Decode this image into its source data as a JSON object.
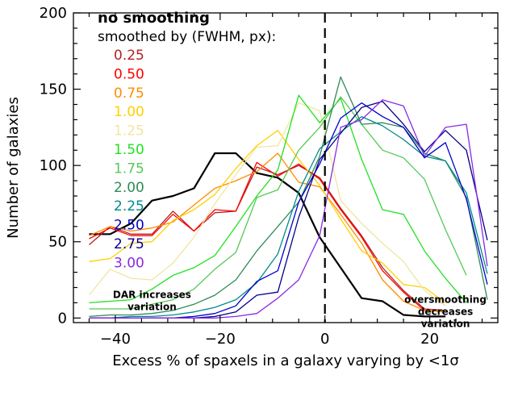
{
  "chart_data": {
    "type": "line",
    "title": "",
    "xlabel": "Excess % of spaxels in a galaxy varying by <1σ",
    "ylabel": "Number of galaxies",
    "xlim": [
      -48,
      33
    ],
    "ylim": [
      -3,
      200
    ],
    "xticks": [
      -40,
      -20,
      0,
      20
    ],
    "yticks": [
      0,
      50,
      100,
      150,
      200
    ],
    "grid": false,
    "legend_position": "top-left",
    "legend": {
      "header": "no smoothing",
      "subheader": "smoothed by (FWHM, px):"
    },
    "reference_line": {
      "x": 0,
      "style": "dashed"
    },
    "annotations": [
      {
        "lines": [
          "DAR increases",
          "variation"
        ],
        "anchor_x": -33,
        "anchor_y": 13
      },
      {
        "lines": [
          "oversmoothing",
          "decreases",
          "variation"
        ],
        "anchor_x": 23,
        "anchor_y": 10
      }
    ],
    "series": [
      {
        "name": "no smoothing",
        "color": "#000000",
        "width": 2.2,
        "legend": "header",
        "x": [
          -45,
          -41,
          -37,
          -33,
          -29,
          -25,
          -21,
          -17,
          -13,
          -9,
          -5,
          -1,
          3,
          7,
          11,
          15,
          19,
          23
        ],
        "y": [
          55,
          55,
          62,
          77,
          80,
          85,
          108,
          108,
          95,
          92,
          82,
          53,
          33,
          13,
          11,
          2,
          1,
          1
        ]
      },
      {
        "name": "0.25",
        "color": "#b22222",
        "width": 1.3,
        "x": [
          -45,
          -41,
          -37,
          -33,
          -29,
          -25,
          -21,
          -17,
          -13,
          -9,
          -5,
          -1,
          3,
          7,
          11,
          15,
          19,
          23
        ],
        "y": [
          48,
          60,
          55,
          55,
          70,
          57,
          69,
          70,
          99,
          94,
          100,
          92,
          72,
          54,
          33,
          18,
          6,
          5
        ]
      },
      {
        "name": "0.50",
        "color": "#ff0000",
        "width": 1.3,
        "x": [
          -45,
          -41,
          -37,
          -33,
          -29,
          -25,
          -21,
          -17,
          -13,
          -9,
          -5,
          -1,
          3,
          7,
          11,
          15,
          19,
          23
        ],
        "y": [
          52,
          59,
          54,
          54,
          68,
          57,
          71,
          70,
          102,
          93,
          101,
          91,
          71,
          53,
          31,
          17,
          5,
          4
        ]
      },
      {
        "name": "0.75",
        "color": "#ff8c00",
        "width": 1.3,
        "x": [
          -45,
          -41,
          -37,
          -33,
          -29,
          -25,
          -21,
          -17,
          -13,
          -9,
          -5,
          -1,
          3,
          7,
          11,
          15,
          19,
          23
        ],
        "y": [
          54,
          60,
          57,
          59,
          63,
          74,
          85,
          90,
          96,
          108,
          89,
          86,
          68,
          49,
          25,
          11,
          5,
          4
        ]
      },
      {
        "name": "1.00",
        "color": "#ffd000",
        "width": 1.3,
        "x": [
          -45,
          -41,
          -37,
          -33,
          -29,
          -25,
          -21,
          -17,
          -13,
          -9,
          -5,
          -1,
          3,
          7,
          11,
          15,
          19,
          23
        ],
        "y": [
          37,
          39,
          49,
          50,
          64,
          71,
          81,
          98,
          113,
          123,
          104,
          87,
          65,
          44,
          36,
          22,
          20,
          10
        ]
      },
      {
        "name": "1.25",
        "color": "#f0e6a0",
        "width": 1.3,
        "x": [
          -45,
          -41,
          -37,
          -33,
          -29,
          -25,
          -21,
          -17,
          -13,
          -9,
          -5,
          -1,
          3,
          7,
          11,
          15,
          19,
          23
        ],
        "y": [
          15,
          32,
          26,
          25,
          36,
          53,
          75,
          94,
          112,
          113,
          141,
          136,
          77,
          62,
          49,
          37,
          18,
          8
        ]
      },
      {
        "name": "1.50",
        "color": "#22e022",
        "width": 1.3,
        "x": [
          -45,
          -41,
          -37,
          -33,
          -29,
          -25,
          -21,
          -17,
          -13,
          -9,
          -5,
          -1,
          3,
          7,
          11,
          15,
          19,
          23,
          27
        ],
        "y": [
          10,
          11,
          12,
          19,
          28,
          33,
          41,
          60,
          80,
          97,
          146,
          128,
          144,
          104,
          71,
          68,
          44,
          26,
          10
        ]
      },
      {
        "name": "1.75",
        "color": "#55c855",
        "width": 1.3,
        "x": [
          -45,
          -41,
          -37,
          -33,
          -29,
          -25,
          -21,
          -17,
          -13,
          -9,
          -5,
          -1,
          3,
          7,
          11,
          15,
          19,
          23,
          27
        ],
        "y": [
          6,
          6,
          6,
          9,
          12,
          19,
          32,
          43,
          79,
          84,
          110,
          125,
          145,
          127,
          110,
          105,
          91,
          58,
          28
        ]
      },
      {
        "name": "2.00",
        "color": "#2e8b57",
        "width": 1.3,
        "x": [
          -45,
          -41,
          -37,
          -33,
          -29,
          -25,
          -21,
          -17,
          -13,
          -9,
          -5,
          -1,
          3,
          7,
          11,
          15,
          19,
          23,
          27,
          31
        ],
        "y": [
          1,
          2,
          2,
          3,
          5,
          9,
          15,
          25,
          44,
          60,
          76,
          106,
          158,
          127,
          128,
          125,
          108,
          103,
          79,
          12
        ]
      },
      {
        "name": "2.25",
        "color": "#008b8b",
        "width": 1.3,
        "x": [
          -45,
          -41,
          -37,
          -33,
          -29,
          -25,
          -21,
          -17,
          -13,
          -9,
          -5,
          -1,
          3,
          7,
          11,
          15,
          19,
          23,
          27,
          31
        ],
        "y": [
          0,
          0,
          1,
          1,
          2,
          4,
          7,
          12,
          23,
          42,
          83,
          111,
          122,
          132,
          126,
          117,
          106,
          103,
          82,
          29
        ]
      },
      {
        "name": "2.50",
        "color": "#0000cd",
        "width": 1.3,
        "x": [
          -45,
          -41,
          -37,
          -33,
          -29,
          -25,
          -21,
          -17,
          -13,
          -9,
          -5,
          -1,
          3,
          7,
          11,
          15,
          19,
          23,
          27,
          31
        ],
        "y": [
          0,
          0,
          0,
          0,
          0,
          1,
          3,
          8,
          24,
          31,
          76,
          101,
          131,
          141,
          132,
          125,
          105,
          115,
          78,
          22
        ]
      },
      {
        "name": "2.75",
        "color": "#00008b",
        "width": 1.3,
        "x": [
          -45,
          -41,
          -37,
          -33,
          -29,
          -25,
          -21,
          -17,
          -13,
          -9,
          -5,
          -1,
          3,
          7,
          11,
          15,
          19,
          23,
          27,
          31
        ],
        "y": [
          0,
          0,
          0,
          0,
          0,
          0,
          1,
          4,
          15,
          17,
          66,
          104,
          121,
          138,
          142,
          127,
          109,
          123,
          110,
          51
        ]
      },
      {
        "name": "3.00",
        "color": "#8a2be2",
        "width": 1.3,
        "x": [
          -45,
          -41,
          -37,
          -33,
          -29,
          -25,
          -21,
          -17,
          -13,
          -9,
          -5,
          -1,
          3,
          7,
          11,
          15,
          19,
          23,
          27,
          31
        ],
        "y": [
          0,
          0,
          0,
          0,
          0,
          0,
          0,
          1,
          3,
          13,
          25,
          54,
          125,
          130,
          143,
          139,
          106,
          125,
          127,
          34
        ]
      }
    ]
  }
}
